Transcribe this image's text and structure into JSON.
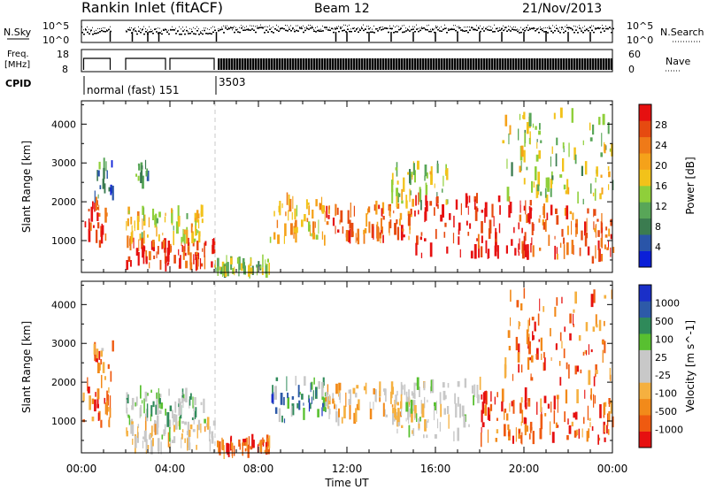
{
  "header": {
    "station": "Rankin Inlet (fitACF)",
    "beam": "Beam 12",
    "date": "21/Nov/2013"
  },
  "nsky_panel": {
    "left_label": "N.Sky",
    "right_label": "N.Search",
    "right_ticks": [
      "10^5",
      "10^0"
    ],
    "left_ticks": [
      "10^5",
      "10^0"
    ]
  },
  "freq_panel": {
    "left_label_line1": "Freq.",
    "left_label_line2": "[MHz]",
    "left_ticks": [
      "18",
      "8"
    ],
    "right_label": "Nave",
    "right_ticks": [
      "60",
      "0"
    ]
  },
  "cpid": {
    "label": "CPID",
    "segments": [
      {
        "start_hour": 0.0,
        "end_hour": 6.1,
        "text": "normal (fast) 151"
      },
      {
        "start_hour": 6.1,
        "end_hour": 24.0,
        "text": "3503"
      }
    ]
  },
  "time_axis": {
    "label": "Time UT",
    "tick_labels": [
      "00:00",
      "04:00",
      "08:00",
      "12:00",
      "16:00",
      "20:00",
      "00:00"
    ],
    "range_hours": [
      0,
      24
    ],
    "major_step_hours": 4,
    "minor_step_hours": 1
  },
  "colors": {
    "power_scale": [
      "#0b1fd8",
      "#2a55a8",
      "#3b7c50",
      "#58a658",
      "#8fcf3a",
      "#f2c21a",
      "#f5a21a",
      "#ef7a18",
      "#e64a10",
      "#e61010"
    ],
    "velocity_scale": [
      "#e61010",
      "#ef5a10",
      "#f28a1a",
      "#f5b040",
      "#c8c8c8",
      "#c8c8c8",
      "#58c030",
      "#2f8a5a",
      "#2d5aa8",
      "#1a2fc8"
    ],
    "dashed_line": "#c8c8c8"
  },
  "chart_data": [
    {
      "type": "heatmap",
      "title": "Power",
      "ylabel": "Slant Range [km]",
      "xlabel": "",
      "xlim": [
        0,
        24
      ],
      "ylim": [
        180,
        4600
      ],
      "yticks": [
        1000,
        2000,
        3000,
        4000
      ],
      "colorbar": {
        "label": "Power [dB]",
        "range": [
          0,
          32
        ],
        "tick_values": [
          4,
          8,
          12,
          16,
          20,
          24,
          28
        ]
      },
      "regions": [
        {
          "t0": 0.0,
          "t1": 1.3,
          "r0": 900,
          "r1": 2000,
          "level": 0.85
        },
        {
          "t0": 0.5,
          "t1": 1.4,
          "r0": 2000,
          "r1": 3000,
          "level": 0.25
        },
        {
          "t0": 2.0,
          "t1": 6.0,
          "r0": 300,
          "r1": 1000,
          "level": 0.9
        },
        {
          "t0": 2.0,
          "t1": 5.5,
          "r0": 1000,
          "r1": 1800,
          "level": 0.55
        },
        {
          "t0": 2.3,
          "t1": 3.0,
          "r0": 2500,
          "r1": 3000,
          "level": 0.3
        },
        {
          "t0": 6.0,
          "t1": 8.5,
          "r0": 200,
          "r1": 500,
          "level": 0.4
        },
        {
          "t0": 8.5,
          "t1": 11.0,
          "r0": 1000,
          "r1": 2100,
          "level": 0.6
        },
        {
          "t0": 11.0,
          "t1": 15.0,
          "r0": 1000,
          "r1": 1900,
          "level": 0.8
        },
        {
          "t0": 14.0,
          "t1": 16.5,
          "r0": 1900,
          "r1": 3000,
          "level": 0.45
        },
        {
          "t0": 15.0,
          "t1": 20.5,
          "r0": 600,
          "r1": 2100,
          "level": 0.95
        },
        {
          "t0": 20.5,
          "t1": 24.0,
          "r0": 500,
          "r1": 1800,
          "level": 0.85
        },
        {
          "t0": 19.0,
          "t1": 24.0,
          "r0": 2000,
          "r1": 4300,
          "level": 0.45
        }
      ]
    },
    {
      "type": "heatmap",
      "title": "Velocity",
      "ylabel": "Slant Range [km]",
      "xlabel": "Time UT",
      "xlim": [
        0,
        24
      ],
      "ylim": [
        180,
        4600
      ],
      "yticks": [
        1000,
        2000,
        3000,
        4000
      ],
      "colorbar": {
        "label": "Velocity [m s^-1]",
        "tick_values": [
          "1000",
          "500",
          "100",
          "25",
          "-25",
          "-100",
          "-500",
          "-1000"
        ]
      },
      "regions": [
        {
          "t0": 0.0,
          "t1": 1.3,
          "r0": 900,
          "r1": 2000,
          "level": 0.2
        },
        {
          "t0": 0.5,
          "t1": 1.4,
          "r0": 2000,
          "r1": 3000,
          "level": 0.25
        },
        {
          "t0": 2.0,
          "t1": 6.0,
          "r0": 300,
          "r1": 1000,
          "level": 0.45
        },
        {
          "t0": 2.0,
          "t1": 5.5,
          "r0": 1000,
          "r1": 1800,
          "level": 0.6
        },
        {
          "t0": 6.0,
          "t1": 8.5,
          "r0": 200,
          "r1": 500,
          "level": 0.2
        },
        {
          "t0": 8.5,
          "t1": 11.0,
          "r0": 1000,
          "r1": 2100,
          "level": 0.75
        },
        {
          "t0": 11.0,
          "t1": 15.0,
          "r0": 1000,
          "r1": 1900,
          "level": 0.4
        },
        {
          "t0": 14.0,
          "t1": 18.0,
          "r0": 600,
          "r1": 2000,
          "level": 0.5
        },
        {
          "t0": 18.0,
          "t1": 24.0,
          "r0": 500,
          "r1": 1700,
          "level": 0.15
        },
        {
          "t0": 19.0,
          "t1": 24.0,
          "r0": 2000,
          "r1": 4300,
          "level": 0.2
        }
      ]
    }
  ]
}
